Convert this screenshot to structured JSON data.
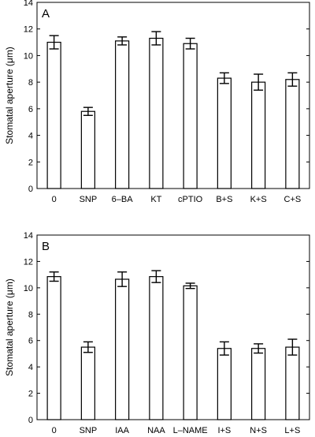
{
  "chart_data": [
    {
      "type": "bar",
      "panel_label": "A",
      "ylabel": "Stomatal aperture (μm)",
      "ylim": [
        0,
        14
      ],
      "yticks": [
        0,
        2,
        4,
        6,
        8,
        10,
        12,
        14
      ],
      "categories": [
        "0",
        "SNP",
        "6–BA",
        "KT",
        "cPTIO",
        "B+S",
        "K+S",
        "C+S"
      ],
      "values": [
        11.0,
        5.8,
        11.1,
        11.3,
        10.9,
        8.3,
        8.0,
        8.2
      ],
      "errors": [
        0.5,
        0.3,
        0.3,
        0.5,
        0.4,
        0.4,
        0.6,
        0.5
      ],
      "bar_color": "#ffffff",
      "edge_color": "#000000",
      "grid": false
    },
    {
      "type": "bar",
      "panel_label": "B",
      "ylabel": "Stomatal aperture (μm)",
      "ylim": [
        0,
        14
      ],
      "yticks": [
        0,
        2,
        4,
        6,
        8,
        10,
        12,
        14
      ],
      "categories": [
        "0",
        "SNP",
        "IAA",
        "NAA",
        "L–NAME",
        "I+S",
        "N+S",
        "L+S"
      ],
      "values": [
        10.85,
        5.5,
        10.65,
        10.85,
        10.15,
        5.4,
        5.4,
        5.5
      ],
      "errors": [
        0.35,
        0.4,
        0.55,
        0.45,
        0.2,
        0.5,
        0.35,
        0.6
      ],
      "bar_color": "#ffffff",
      "edge_color": "#000000",
      "grid": false
    }
  ]
}
